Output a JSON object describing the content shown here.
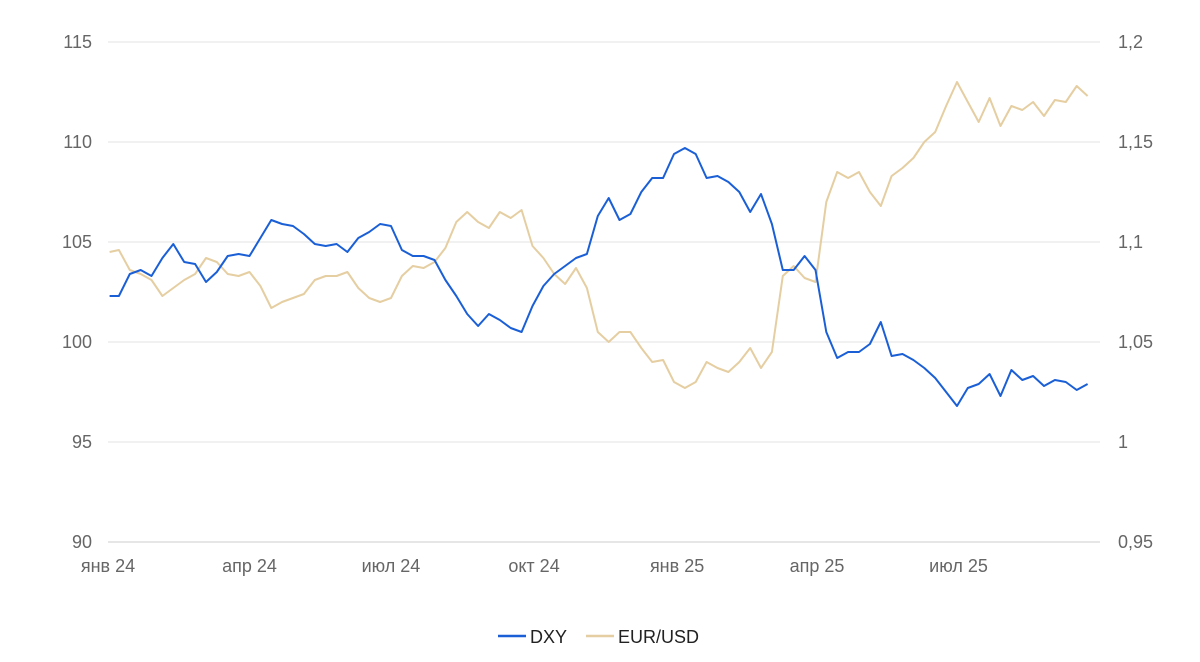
{
  "chart_data": {
    "type": "line",
    "title": "",
    "legend_position": "bottom",
    "grid": true,
    "x_ticks": [
      "янв 24",
      "апр 24",
      "июл 24",
      "окт 24",
      "янв 25",
      "апр 25",
      "июл 25"
    ],
    "y_left": {
      "ylim": [
        90,
        115
      ],
      "ticks": [
        "90",
        "95",
        "100",
        "105",
        "110",
        "115"
      ]
    },
    "y_right": {
      "ylim": [
        0.95,
        1.2
      ],
      "ticks": [
        "0,95",
        "1",
        "1,05",
        "1,1",
        "1,15",
        "1,2"
      ]
    },
    "series": [
      {
        "name": "DXY",
        "axis": "left",
        "color": "#1a5fd6",
        "x": [
          "2024-01-02",
          "2024-01-08",
          "2024-01-15",
          "2024-01-22",
          "2024-01-29",
          "2024-02-05",
          "2024-02-12",
          "2024-02-19",
          "2024-02-26",
          "2024-03-04",
          "2024-03-11",
          "2024-03-18",
          "2024-03-25",
          "2024-04-01",
          "2024-04-08",
          "2024-04-15",
          "2024-04-22",
          "2024-04-29",
          "2024-05-06",
          "2024-05-13",
          "2024-05-20",
          "2024-05-27",
          "2024-06-03",
          "2024-06-10",
          "2024-06-17",
          "2024-06-24",
          "2024-07-01",
          "2024-07-08",
          "2024-07-15",
          "2024-07-22",
          "2024-07-29",
          "2024-08-05",
          "2024-08-12",
          "2024-08-19",
          "2024-08-26",
          "2024-09-02",
          "2024-09-09",
          "2024-09-16",
          "2024-09-23",
          "2024-09-30",
          "2024-10-07",
          "2024-10-14",
          "2024-10-21",
          "2024-10-28",
          "2024-11-04",
          "2024-11-11",
          "2024-11-18",
          "2024-11-25",
          "2024-12-02",
          "2024-12-09",
          "2024-12-16",
          "2024-12-23",
          "2024-12-30",
          "2025-01-06",
          "2025-01-13",
          "2025-01-20",
          "2025-01-27",
          "2025-02-03",
          "2025-02-10",
          "2025-02-17",
          "2025-02-24",
          "2025-03-03",
          "2025-03-10",
          "2025-03-17",
          "2025-03-24",
          "2025-03-31",
          "2025-04-07",
          "2025-04-14",
          "2025-04-21",
          "2025-04-28",
          "2025-05-05",
          "2025-05-12",
          "2025-05-19",
          "2025-05-26",
          "2025-06-02",
          "2025-06-09",
          "2025-06-16",
          "2025-06-23",
          "2025-06-30",
          "2025-07-07",
          "2025-07-14",
          "2025-07-21",
          "2025-07-28",
          "2025-08-04",
          "2025-08-11",
          "2025-08-18",
          "2025-08-25",
          "2025-09-01",
          "2025-09-08",
          "2025-09-15",
          "2025-09-22"
        ],
        "values": [
          102.3,
          102.3,
          103.4,
          103.6,
          103.3,
          104.2,
          104.9,
          104.0,
          103.9,
          103.0,
          103.5,
          104.3,
          104.4,
          104.3,
          105.2,
          106.1,
          105.9,
          105.8,
          105.4,
          104.9,
          104.8,
          104.9,
          104.5,
          105.2,
          105.5,
          105.9,
          105.8,
          104.6,
          104.3,
          104.3,
          104.1,
          103.1,
          102.3,
          101.4,
          100.8,
          101.4,
          101.1,
          100.7,
          100.5,
          101.8,
          102.8,
          103.4,
          103.8,
          104.2,
          104.4,
          106.3,
          107.2,
          106.1,
          106.4,
          107.5,
          108.2,
          108.2,
          109.4,
          109.7,
          109.4,
          108.2,
          108.3,
          108.0,
          107.5,
          106.5,
          107.4,
          105.9,
          103.6,
          103.6,
          104.3,
          103.6,
          100.5,
          99.2,
          99.5,
          99.5,
          99.9,
          101.0,
          99.3,
          99.4,
          99.1,
          98.7,
          98.2,
          97.5,
          96.8,
          97.7,
          97.9,
          98.4,
          97.3,
          98.6,
          98.1,
          98.3,
          97.8,
          98.1,
          98.0,
          97.6,
          97.9
        ]
      },
      {
        "name": "EUR/USD",
        "axis": "right",
        "color": "#e5cea1",
        "x": [
          "2024-01-02",
          "2024-01-08",
          "2024-01-15",
          "2024-01-22",
          "2024-01-29",
          "2024-02-05",
          "2024-02-12",
          "2024-02-19",
          "2024-02-26",
          "2024-03-04",
          "2024-03-11",
          "2024-03-18",
          "2024-03-25",
          "2024-04-01",
          "2024-04-08",
          "2024-04-15",
          "2024-04-22",
          "2024-04-29",
          "2024-05-06",
          "2024-05-13",
          "2024-05-20",
          "2024-05-27",
          "2024-06-03",
          "2024-06-10",
          "2024-06-17",
          "2024-06-24",
          "2024-07-01",
          "2024-07-08",
          "2024-07-15",
          "2024-07-22",
          "2024-07-29",
          "2024-08-05",
          "2024-08-12",
          "2024-08-19",
          "2024-08-26",
          "2024-09-02",
          "2024-09-09",
          "2024-09-16",
          "2024-09-23",
          "2024-09-30",
          "2024-10-07",
          "2024-10-14",
          "2024-10-21",
          "2024-10-28",
          "2024-11-04",
          "2024-11-11",
          "2024-11-18",
          "2024-11-25",
          "2024-12-02",
          "2024-12-09",
          "2024-12-16",
          "2024-12-23",
          "2024-12-30",
          "2025-01-06",
          "2025-01-13",
          "2025-01-20",
          "2025-01-27",
          "2025-02-03",
          "2025-02-10",
          "2025-02-17",
          "2025-02-24",
          "2025-03-03",
          "2025-03-10",
          "2025-03-17",
          "2025-03-24",
          "2025-03-31",
          "2025-04-07",
          "2025-04-14",
          "2025-04-21",
          "2025-04-28",
          "2025-05-05",
          "2025-05-12",
          "2025-05-19",
          "2025-05-26",
          "2025-06-02",
          "2025-06-09",
          "2025-06-16",
          "2025-06-23",
          "2025-06-30",
          "2025-07-07",
          "2025-07-14",
          "2025-07-21",
          "2025-07-28",
          "2025-08-04",
          "2025-08-11",
          "2025-08-18",
          "2025-08-25",
          "2025-09-01",
          "2025-09-08",
          "2025-09-15",
          "2025-09-22"
        ],
        "values": [
          1.095,
          1.096,
          1.086,
          1.084,
          1.081,
          1.073,
          1.077,
          1.081,
          1.084,
          1.092,
          1.09,
          1.084,
          1.083,
          1.085,
          1.078,
          1.067,
          1.07,
          1.072,
          1.074,
          1.081,
          1.083,
          1.083,
          1.085,
          1.077,
          1.072,
          1.07,
          1.072,
          1.083,
          1.088,
          1.087,
          1.09,
          1.097,
          1.11,
          1.115,
          1.11,
          1.107,
          1.115,
          1.112,
          1.116,
          1.098,
          1.092,
          1.084,
          1.079,
          1.087,
          1.077,
          1.055,
          1.05,
          1.055,
          1.055,
          1.047,
          1.04,
          1.041,
          1.03,
          1.027,
          1.03,
          1.04,
          1.037,
          1.035,
          1.04,
          1.047,
          1.037,
          1.045,
          1.083,
          1.088,
          1.082,
          1.08,
          1.12,
          1.135,
          1.132,
          1.135,
          1.125,
          1.118,
          1.133,
          1.137,
          1.142,
          1.15,
          1.155,
          1.168,
          1.18,
          1.17,
          1.16,
          1.172,
          1.158,
          1.168,
          1.166,
          1.17,
          1.163,
          1.171,
          1.17,
          1.178,
          1.173
        ]
      }
    ]
  }
}
